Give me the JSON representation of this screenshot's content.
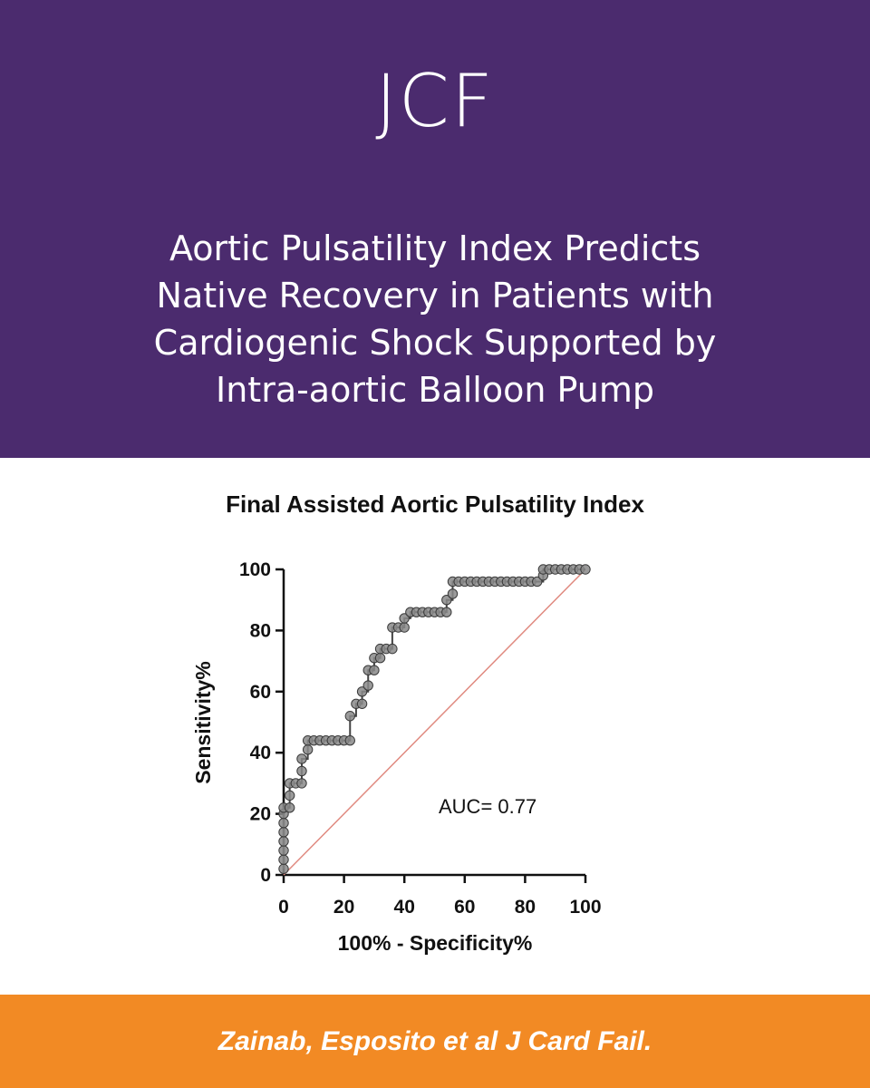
{
  "header": {
    "logo": "JCF",
    "title_lines": [
      "Aortic Pulsatility Index Predicts",
      "Native Recovery in Patients with",
      "Cardiogenic Shock Supported by",
      "Intra-aortic Balloon Pump"
    ]
  },
  "colors": {
    "header_bg": "#4b2b6e",
    "footer_bg": "#f28a24",
    "curve": "#444444",
    "reference_line": "#e08a80"
  },
  "chart_data": {
    "type": "line",
    "title": "Final Assisted Aortic Pulsatility Index",
    "xlabel": "100% - Specificity%",
    "ylabel": "Sensitivity%",
    "xlim": [
      0,
      100
    ],
    "ylim": [
      0,
      100
    ],
    "xticks": [
      0,
      20,
      40,
      60,
      80,
      100
    ],
    "yticks": [
      0,
      20,
      40,
      60,
      80,
      100
    ],
    "annotation": "AUC= 0.77",
    "grid": false,
    "series": [
      {
        "style": "step-with-markers",
        "x": [
          0,
          0,
          0,
          0,
          0,
          0,
          0,
          0,
          2,
          2,
          2,
          4,
          6,
          6,
          6,
          8,
          8,
          10,
          12,
          14,
          16,
          18,
          20,
          22,
          22,
          24,
          26,
          26,
          28,
          28,
          30,
          30,
          32,
          32,
          34,
          36,
          36,
          38,
          40,
          40,
          42,
          44,
          46,
          48,
          50,
          52,
          54,
          54,
          56,
          56,
          58,
          60,
          62,
          64,
          66,
          68,
          70,
          72,
          74,
          76,
          78,
          80,
          82,
          84,
          86,
          86,
          88,
          90,
          92,
          94,
          96,
          98,
          100
        ],
        "y": [
          2,
          5,
          8,
          11,
          14,
          17,
          20,
          22,
          22,
          26,
          30,
          30,
          30,
          34,
          38,
          41,
          44,
          44,
          44,
          44,
          44,
          44,
          44,
          44,
          52,
          56,
          56,
          60,
          62,
          67,
          67,
          71,
          71,
          74,
          74,
          74,
          81,
          81,
          81,
          84,
          86,
          86,
          86,
          86,
          86,
          86,
          86,
          90,
          92,
          96,
          96,
          96,
          96,
          96,
          96,
          96,
          96,
          96,
          96,
          96,
          96,
          96,
          96,
          96,
          98,
          100,
          100,
          100,
          100,
          100,
          100,
          100,
          100
        ]
      },
      {
        "style": "reference-diagonal",
        "x": [
          0,
          100
        ],
        "y": [
          0,
          100
        ]
      }
    ]
  },
  "footer": {
    "citation": "Zainab, Esposito et al J Card Fail."
  }
}
